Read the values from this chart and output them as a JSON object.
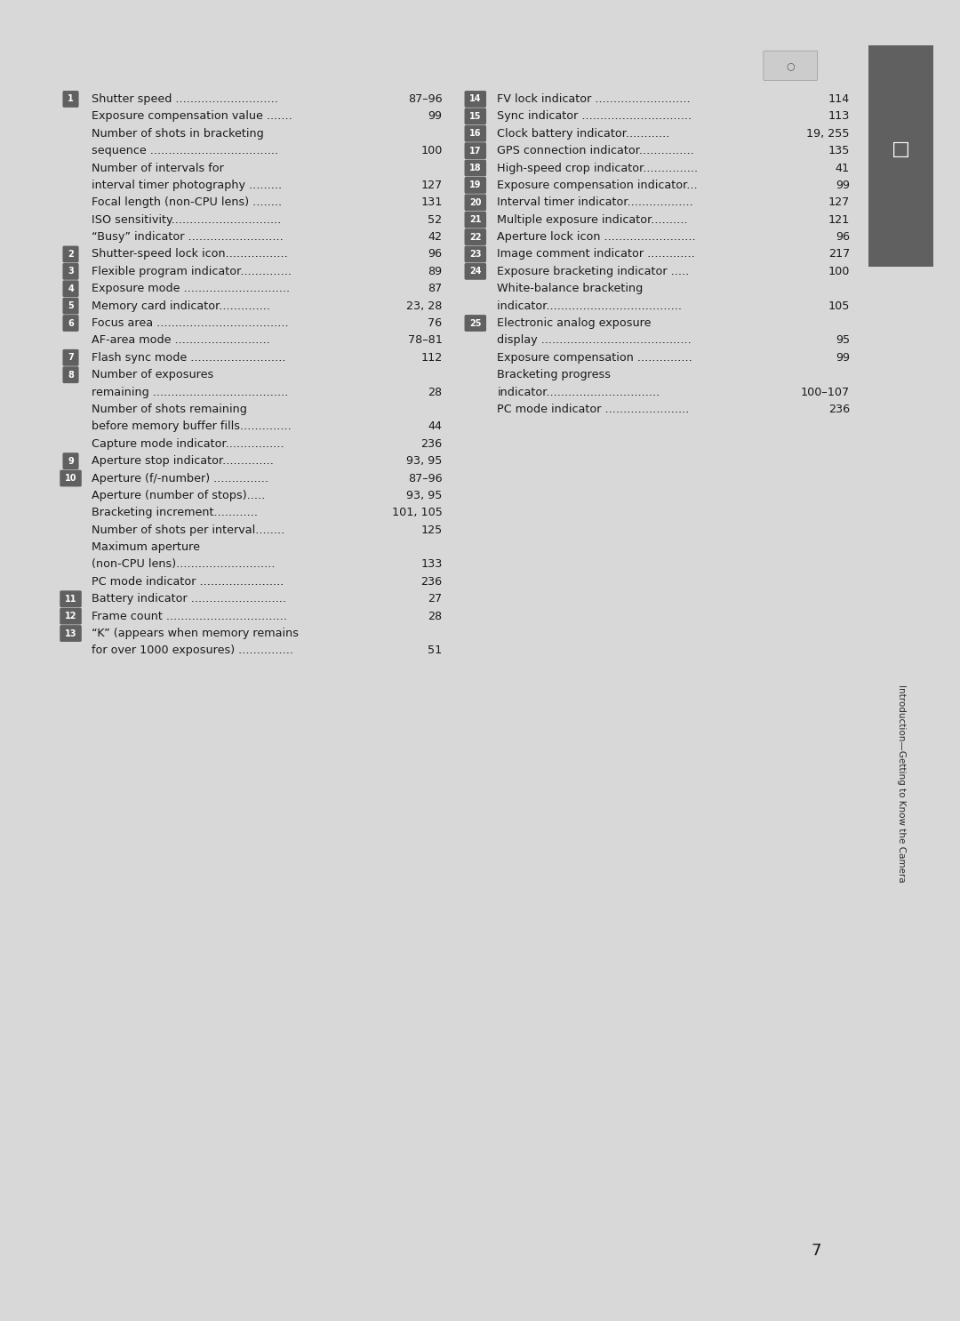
{
  "bg_color": "#d8d8d8",
  "page_bg": "#ffffff",
  "sidebar_color": "#606060",
  "body_text_color": "#1a1a1a",
  "title": "Introduction—Getting to Know the Camera",
  "page_number": "7",
  "left_entries": [
    {
      "num": "1",
      "lines": [
        [
          "Shutter speed ............................",
          "87–96"
        ],
        [
          "Exposure compensation value ....... ",
          "99"
        ],
        [
          "Number of shots in bracketing",
          ""
        ],
        [
          "sequence ................................... ",
          "100"
        ],
        [
          "Number of intervals for",
          ""
        ],
        [
          "interval timer photography ......... ",
          "127"
        ],
        [
          "Focal length (non-CPU lens) ........ ",
          "131"
        ],
        [
          "ISO sensitivity.............................. ",
          "52"
        ],
        [
          "“Busy” indicator .......................... ",
          "42"
        ]
      ]
    },
    {
      "num": "2",
      "lines": [
        [
          "Shutter-speed lock icon................. ",
          "96"
        ]
      ]
    },
    {
      "num": "3",
      "lines": [
        [
          "Flexible program indicator.............. ",
          "89"
        ]
      ]
    },
    {
      "num": "4",
      "lines": [
        [
          "Exposure mode ............................. ",
          "87"
        ]
      ]
    },
    {
      "num": "5",
      "lines": [
        [
          "Memory card indicator.............. ",
          "23, 28"
        ]
      ]
    },
    {
      "num": "6",
      "lines": [
        [
          "Focus area .................................... ",
          "76"
        ],
        [
          "AF-area mode ..........................",
          "78–81"
        ]
      ]
    },
    {
      "num": "7",
      "lines": [
        [
          "Flash sync mode .......................... ",
          "112"
        ]
      ]
    },
    {
      "num": "8",
      "lines": [
        [
          "Number of exposures",
          ""
        ],
        [
          "remaining ..................................... ",
          "28"
        ],
        [
          "Number of shots remaining",
          ""
        ],
        [
          "before memory buffer fills.............. ",
          "44"
        ],
        [
          "Capture mode indicator................ ",
          "236"
        ]
      ]
    },
    {
      "num": "9",
      "lines": [
        [
          "Aperture stop indicator.............. ",
          "93, 95"
        ]
      ]
    },
    {
      "num": "10",
      "lines": [
        [
          "Aperture (f/-number) ...............",
          "87–96"
        ],
        [
          "Aperture (number of stops)..... ",
          "93, 95"
        ],
        [
          "Bracketing increment............ ",
          "101, 105"
        ],
        [
          "Number of shots per interval........ ",
          "125"
        ],
        [
          "Maximum aperture",
          ""
        ],
        [
          "(non-CPU lens)........................... ",
          "133"
        ],
        [
          "PC mode indicator ....................... ",
          "236"
        ]
      ]
    },
    {
      "num": "11",
      "lines": [
        [
          "Battery indicator .......................... ",
          "27"
        ]
      ]
    },
    {
      "num": "12",
      "lines": [
        [
          "Frame count ................................. ",
          "28"
        ]
      ]
    },
    {
      "num": "13",
      "lines": [
        [
          "“K” (appears when memory remains",
          ""
        ],
        [
          "for over 1000 exposures) ............... ",
          "51"
        ]
      ]
    }
  ],
  "right_entries": [
    {
      "num": "14",
      "lines": [
        [
          "FV lock indicator .......................... ",
          "114"
        ]
      ]
    },
    {
      "num": "15",
      "lines": [
        [
          "Sync indicator .............................. ",
          "113"
        ]
      ]
    },
    {
      "num": "16",
      "lines": [
        [
          "Clock battery indicator............ ",
          "19, 255"
        ]
      ]
    },
    {
      "num": "17",
      "lines": [
        [
          "GPS connection indicator............... ",
          "135"
        ]
      ]
    },
    {
      "num": "18",
      "lines": [
        [
          "High-speed crop indicator............... ",
          "41"
        ]
      ]
    },
    {
      "num": "19",
      "lines": [
        [
          "Exposure compensation indicator... ",
          "99"
        ]
      ]
    },
    {
      "num": "20",
      "lines": [
        [
          "Interval timer indicator.................. ",
          "127"
        ]
      ]
    },
    {
      "num": "21",
      "lines": [
        [
          "Multiple exposure indicator.......... ",
          "121"
        ]
      ]
    },
    {
      "num": "22",
      "lines": [
        [
          "Aperture lock icon ......................... ",
          "96"
        ]
      ]
    },
    {
      "num": "23",
      "lines": [
        [
          "Image comment indicator ............. ",
          "217"
        ]
      ]
    },
    {
      "num": "24",
      "lines": [
        [
          "Exposure bracketing indicator ..... ",
          "100"
        ],
        [
          "White-balance bracketing",
          ""
        ],
        [
          "indicator..................................... ",
          "105"
        ]
      ]
    },
    {
      "num": "25",
      "lines": [
        [
          "Electronic analog exposure",
          ""
        ],
        [
          "display ......................................... ",
          "95"
        ],
        [
          "Exposure compensation ............... ",
          "99"
        ],
        [
          "Bracketing progress",
          ""
        ],
        [
          "indicator...............................",
          "100–107"
        ],
        [
          "PC mode indicator ....................... ",
          "236"
        ]
      ]
    }
  ]
}
